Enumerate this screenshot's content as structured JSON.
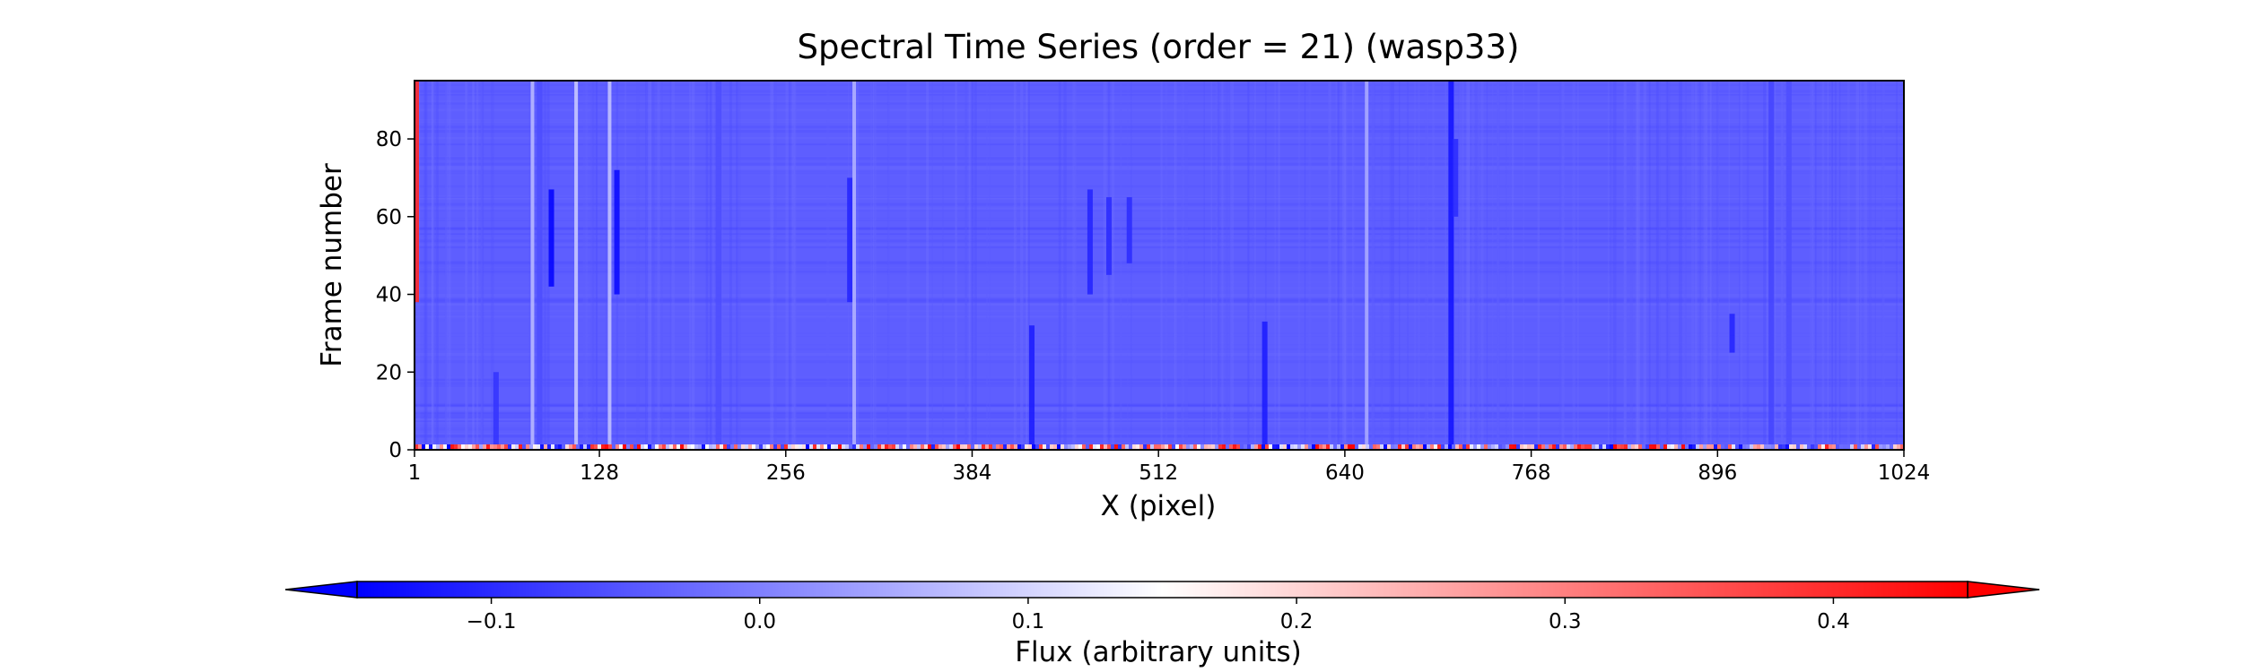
{
  "chart_data": {
    "type": "heatmap",
    "title": "Spectral Time Series (order = 21) (wasp33)",
    "xlabel": "X (pixel)",
    "ylabel": "Frame number",
    "xlim": [
      1,
      1024
    ],
    "ylim": [
      0,
      95
    ],
    "x_ticks": [
      1,
      128,
      256,
      384,
      512,
      640,
      768,
      896,
      1024
    ],
    "y_ticks": [
      0,
      20,
      40,
      60,
      80
    ],
    "colorbar": {
      "label": "Flux (arbitrary units)",
      "colormap": "bwr",
      "vmin": -0.15,
      "vmax": 0.45,
      "extend": "both",
      "ticks": [
        -0.1,
        0.0,
        0.1,
        0.2,
        0.3,
        0.4
      ],
      "tick_labels": [
        "−0.1",
        "0.0",
        "0.1",
        "0.2",
        "0.3",
        "0.4"
      ]
    },
    "background_flux": -0.04,
    "absorption_columns": [
      {
        "x": 57,
        "y0": 0,
        "y1": 20,
        "flux": -0.09
      },
      {
        "x": 87,
        "y0": 0,
        "y1": 95,
        "flux": -0.06
      },
      {
        "x": 95,
        "y0": 42,
        "y1": 67,
        "flux": -0.15
      },
      {
        "x": 140,
        "y0": 40,
        "y1": 72,
        "flux": -0.14
      },
      {
        "x": 210,
        "y0": 0,
        "y1": 95,
        "flux": -0.06
      },
      {
        "x": 300,
        "y0": 38,
        "y1": 70,
        "flux": -0.11
      },
      {
        "x": 425,
        "y0": 0,
        "y1": 32,
        "flux": -0.12
      },
      {
        "x": 465,
        "y0": 40,
        "y1": 67,
        "flux": -0.11
      },
      {
        "x": 478,
        "y0": 45,
        "y1": 65,
        "flux": -0.1
      },
      {
        "x": 492,
        "y0": 48,
        "y1": 65,
        "flux": -0.1
      },
      {
        "x": 585,
        "y0": 0,
        "y1": 33,
        "flux": -0.12
      },
      {
        "x": 713,
        "y0": 0,
        "y1": 95,
        "flux": -0.13
      },
      {
        "x": 716,
        "y0": 60,
        "y1": 80,
        "flux": -0.1
      },
      {
        "x": 906,
        "y0": 25,
        "y1": 35,
        "flux": -0.11
      },
      {
        "x": 933,
        "y0": 0,
        "y1": 95,
        "flux": -0.07
      },
      {
        "x": 945,
        "y0": 0,
        "y1": 95,
        "flux": -0.06
      }
    ],
    "emission_columns": [
      {
        "x": 82,
        "y0": 0,
        "y1": 95,
        "flux": 0.08
      },
      {
        "x": 112,
        "y0": 0,
        "y1": 95,
        "flux": 0.1
      },
      {
        "x": 135,
        "y0": 0,
        "y1": 95,
        "flux": 0.09
      },
      {
        "x": 303,
        "y0": 0,
        "y1": 95,
        "flux": 0.07
      },
      {
        "x": 655,
        "y0": 0,
        "y1": 95,
        "flux": 0.06
      }
    ],
    "noise_rows": {
      "y": 0,
      "flux_range": [
        -0.15,
        0.45
      ]
    },
    "left_edge": {
      "x": 1,
      "flux": 0.4,
      "y0": 38,
      "y1": 95
    }
  }
}
